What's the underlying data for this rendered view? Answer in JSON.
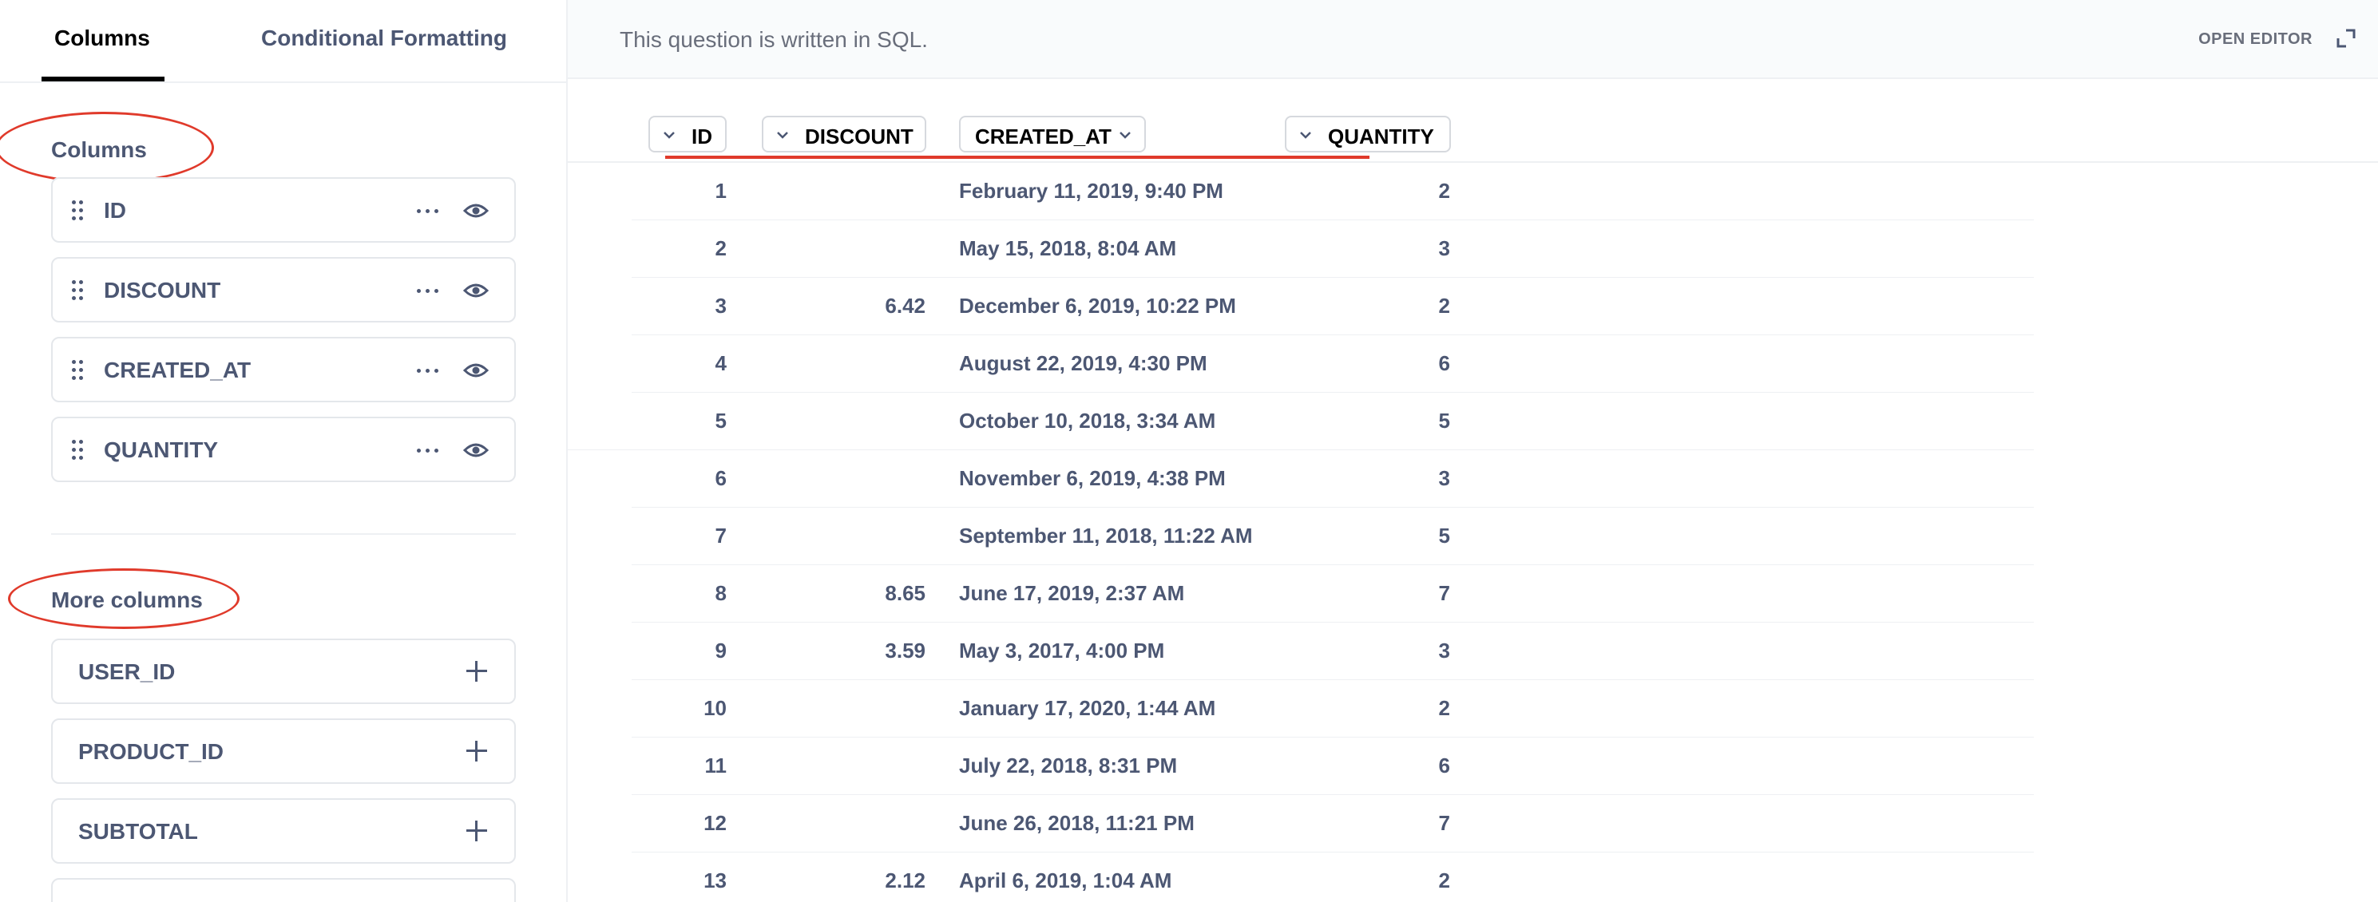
{
  "tabs": [
    {
      "label": "Columns",
      "active": true
    },
    {
      "label": "Conditional Formatting",
      "active": false
    }
  ],
  "sidebar": {
    "columns_title": "Columns",
    "columns": [
      {
        "name": "ID"
      },
      {
        "name": "DISCOUNT"
      },
      {
        "name": "CREATED_AT"
      },
      {
        "name": "QUANTITY"
      }
    ],
    "more_columns_title": "More columns",
    "more_columns": [
      {
        "name": "USER_ID"
      },
      {
        "name": "PRODUCT_ID"
      },
      {
        "name": "SUBTOTAL"
      },
      {
        "name": ""
      }
    ]
  },
  "main": {
    "sql_note": "This question is written in SQL.",
    "open_editor": "OPEN EDITOR",
    "headers": [
      "ID",
      "DISCOUNT",
      "CREATED_AT",
      "QUANTITY"
    ],
    "rows": [
      {
        "id": "1",
        "discount": "",
        "created_at": "February 11, 2019, 9:40 PM",
        "quantity": "2"
      },
      {
        "id": "2",
        "discount": "",
        "created_at": "May 15, 2018, 8:04 AM",
        "quantity": "3"
      },
      {
        "id": "3",
        "discount": "6.42",
        "created_at": "December 6, 2019, 10:22 PM",
        "quantity": "2"
      },
      {
        "id": "4",
        "discount": "",
        "created_at": "August 22, 2019, 4:30 PM",
        "quantity": "6"
      },
      {
        "id": "5",
        "discount": "",
        "created_at": "October 10, 2018, 3:34 AM",
        "quantity": "5"
      },
      {
        "id": "6",
        "discount": "",
        "created_at": "November 6, 2019, 4:38 PM",
        "quantity": "3"
      },
      {
        "id": "7",
        "discount": "",
        "created_at": "September 11, 2018, 11:22 AM",
        "quantity": "5"
      },
      {
        "id": "8",
        "discount": "8.65",
        "created_at": "June 17, 2019, 2:37 AM",
        "quantity": "7"
      },
      {
        "id": "9",
        "discount": "3.59",
        "created_at": "May 3, 2017, 4:00 PM",
        "quantity": "3"
      },
      {
        "id": "10",
        "discount": "",
        "created_at": "January 17, 2020, 1:44 AM",
        "quantity": "2"
      },
      {
        "id": "11",
        "discount": "",
        "created_at": "July 22, 2018, 8:31 PM",
        "quantity": "6"
      },
      {
        "id": "12",
        "discount": "",
        "created_at": "June 26, 2018, 11:21 PM",
        "quantity": "7"
      },
      {
        "id": "13",
        "discount": "2.12",
        "created_at": "April 6, 2019, 1:04 AM",
        "quantity": "2"
      }
    ]
  },
  "colors": {
    "annotation_red": "#e03a2b",
    "text": "#4c5773",
    "border": "#e4e7eb"
  }
}
